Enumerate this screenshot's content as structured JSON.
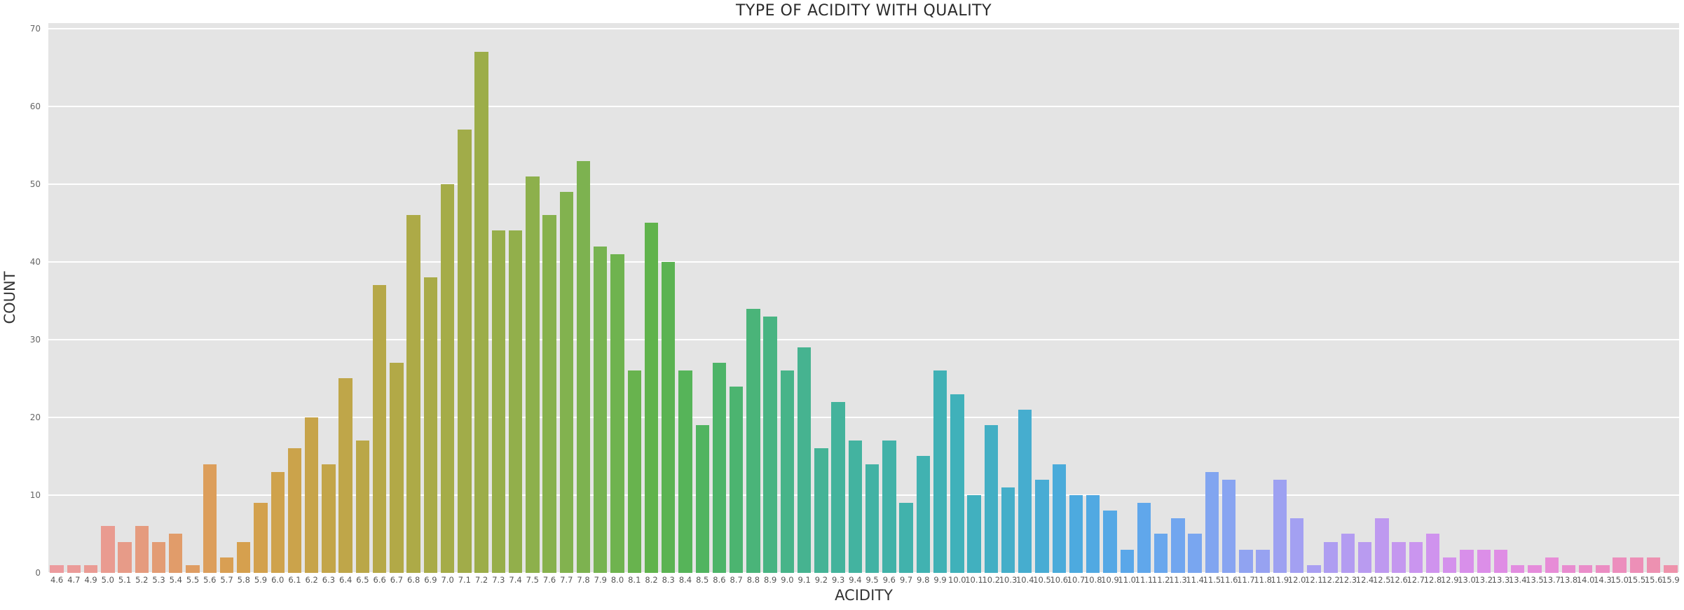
{
  "chart_data": {
    "type": "bar",
    "title": "TYPE OF ACIDITY WITH QUALITY",
    "xlabel": "ACIDITY",
    "ylabel": "COUNT",
    "ylim": [
      0,
      70.7
    ],
    "yticks": [
      0,
      10,
      20,
      30,
      40,
      50,
      60,
      70
    ],
    "grid": true,
    "legend": false,
    "categories": [
      "4.6",
      "4.7",
      "4.9",
      "5.0",
      "5.1",
      "5.2",
      "5.3",
      "5.4",
      "5.5",
      "5.6",
      "5.7",
      "5.8",
      "5.9",
      "6.0",
      "6.1",
      "6.2",
      "6.3",
      "6.4",
      "6.5",
      "6.6",
      "6.7",
      "6.8",
      "6.9",
      "7.0",
      "7.1",
      "7.2",
      "7.3",
      "7.4",
      "7.5",
      "7.6",
      "7.7",
      "7.8",
      "7.9",
      "8.0",
      "8.1",
      "8.2",
      "8.3",
      "8.4",
      "8.5",
      "8.6",
      "8.7",
      "8.8",
      "8.9",
      "9.0",
      "9.1",
      "9.2",
      "9.3",
      "9.4",
      "9.5",
      "9.6",
      "9.7",
      "9.8",
      "9.9",
      "10.0",
      "10.1",
      "10.2",
      "10.3",
      "10.4",
      "10.5",
      "10.6",
      "10.7",
      "10.8",
      "10.9",
      "11.0",
      "11.1",
      "11.2",
      "11.3",
      "11.4",
      "11.5",
      "11.6",
      "11.7",
      "11.8",
      "11.9",
      "12.0",
      "12.1",
      "12.2",
      "12.3",
      "12.4",
      "12.5",
      "12.6",
      "12.7",
      "12.8",
      "12.9",
      "13.0",
      "13.2",
      "13.3",
      "13.4",
      "13.5",
      "13.7",
      "13.8",
      "14.0",
      "14.3",
      "15.0",
      "15.5",
      "15.6",
      "15.9"
    ],
    "values": [
      1,
      1,
      1,
      6,
      4,
      6,
      4,
      5,
      1,
      14,
      2,
      4,
      9,
      13,
      16,
      20,
      14,
      25,
      17,
      37,
      27,
      46,
      38,
      50,
      57,
      67,
      44,
      44,
      51,
      46,
      49,
      53,
      42,
      41,
      26,
      45,
      40,
      26,
      19,
      27,
      24,
      34,
      33,
      26,
      29,
      16,
      22,
      17,
      14,
      17,
      9,
      15,
      26,
      23,
      10,
      19,
      11,
      21,
      12,
      14,
      10,
      10,
      8,
      3,
      9,
      5,
      7,
      5,
      13,
      12,
      3,
      3,
      12,
      7,
      1,
      4,
      5,
      4,
      7,
      4,
      4,
      5,
      2,
      3,
      3,
      3,
      1,
      1,
      2,
      1,
      1,
      1,
      2,
      2,
      2,
      1
    ],
    "palette_anchors": [
      "#ec9b9e",
      "#e89b8d",
      "#e19c6a",
      "#d8a04f",
      "#cba34b",
      "#bca748",
      "#adaa47",
      "#9ead49",
      "#8cb04c",
      "#79b351",
      "#5fb34c",
      "#4eb465",
      "#48b484",
      "#44b39b",
      "#41b2a9",
      "#40b1b9",
      "#44aecb",
      "#4caade",
      "#5ba7ea",
      "#78a6f0",
      "#93a3f1",
      "#a89ff2",
      "#bb9af0",
      "#cf93ee",
      "#de8de7",
      "#e78cd7",
      "#ec8dc0",
      "#ee92ab"
    ],
    "colors": {
      "figure_bg": "#ffffff",
      "plot_bg": "#e4e4e4",
      "gridline": "#ffffff",
      "tick_text": "#666666",
      "axis_label_text": "#333333",
      "title_text": "#2b2b2b"
    }
  }
}
